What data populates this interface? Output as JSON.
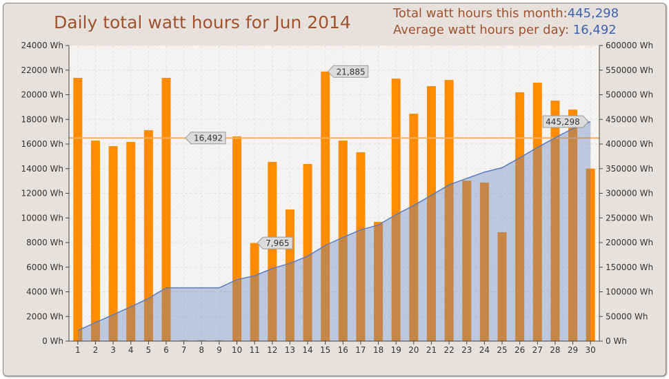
{
  "title": "Daily total watt hours for Jun 2014",
  "summary": {
    "total_label": "Total watt hours this month:",
    "total_value": "445,298",
    "average_label": "Average watt hours per day:",
    "average_value": "16,492"
  },
  "chart_data": {
    "type": "bar",
    "title": "Daily total watt hours for Jun 2014",
    "categories": [
      "1",
      "2",
      "3",
      "4",
      "5",
      "6",
      "7",
      "8",
      "9",
      "10",
      "11",
      "12",
      "13",
      "14",
      "15",
      "16",
      "17",
      "18",
      "19",
      "20",
      "21",
      "22",
      "23",
      "24",
      "25",
      "26",
      "27",
      "28",
      "29",
      "30"
    ],
    "series": [
      {
        "type": "bar",
        "axis": "left",
        "color": "#ff8c00",
        "values": [
          21370,
          16280,
          15830,
          16170,
          17120,
          21370,
          0,
          0,
          0,
          16620,
          7965,
          14550,
          10690,
          14380,
          21885,
          16280,
          15330,
          9680,
          21310,
          18460,
          20700,
          21200,
          13030,
          12870,
          8840,
          20200,
          20980,
          19520,
          18800,
          14000
        ]
      },
      {
        "type": "area",
        "axis": "right",
        "color": "#5a7bbf",
        "cumulative": true
      }
    ],
    "average_line": {
      "value": 16492,
      "label": "16,492",
      "color": "#f7b060"
    },
    "annotations": [
      {
        "day": "15",
        "label": "21,885"
      },
      {
        "day": "11",
        "label": "7,965"
      },
      {
        "day": "30",
        "label": "445,298",
        "axis": "right"
      }
    ],
    "left_axis": {
      "ylim": [
        0,
        24000
      ],
      "ticks": [
        "0 Wh",
        "2000 Wh",
        "4000 Wh",
        "6000 Wh",
        "8000 Wh",
        "10000 Wh",
        "12000 Wh",
        "14000 Wh",
        "16000 Wh",
        "18000 Wh",
        "20000 Wh",
        "22000 Wh",
        "24000 Wh"
      ]
    },
    "right_axis": {
      "ylim": [
        0,
        600000
      ],
      "ticks": [
        "0 Wh",
        "50000 Wh",
        "100000 Wh",
        "150000 Wh",
        "200000 Wh",
        "250000 Wh",
        "300000 Wh",
        "350000 Wh",
        "400000 Wh",
        "450000 Wh",
        "500000 Wh",
        "550000 Wh",
        "600000 Wh"
      ]
    },
    "grid": true
  }
}
